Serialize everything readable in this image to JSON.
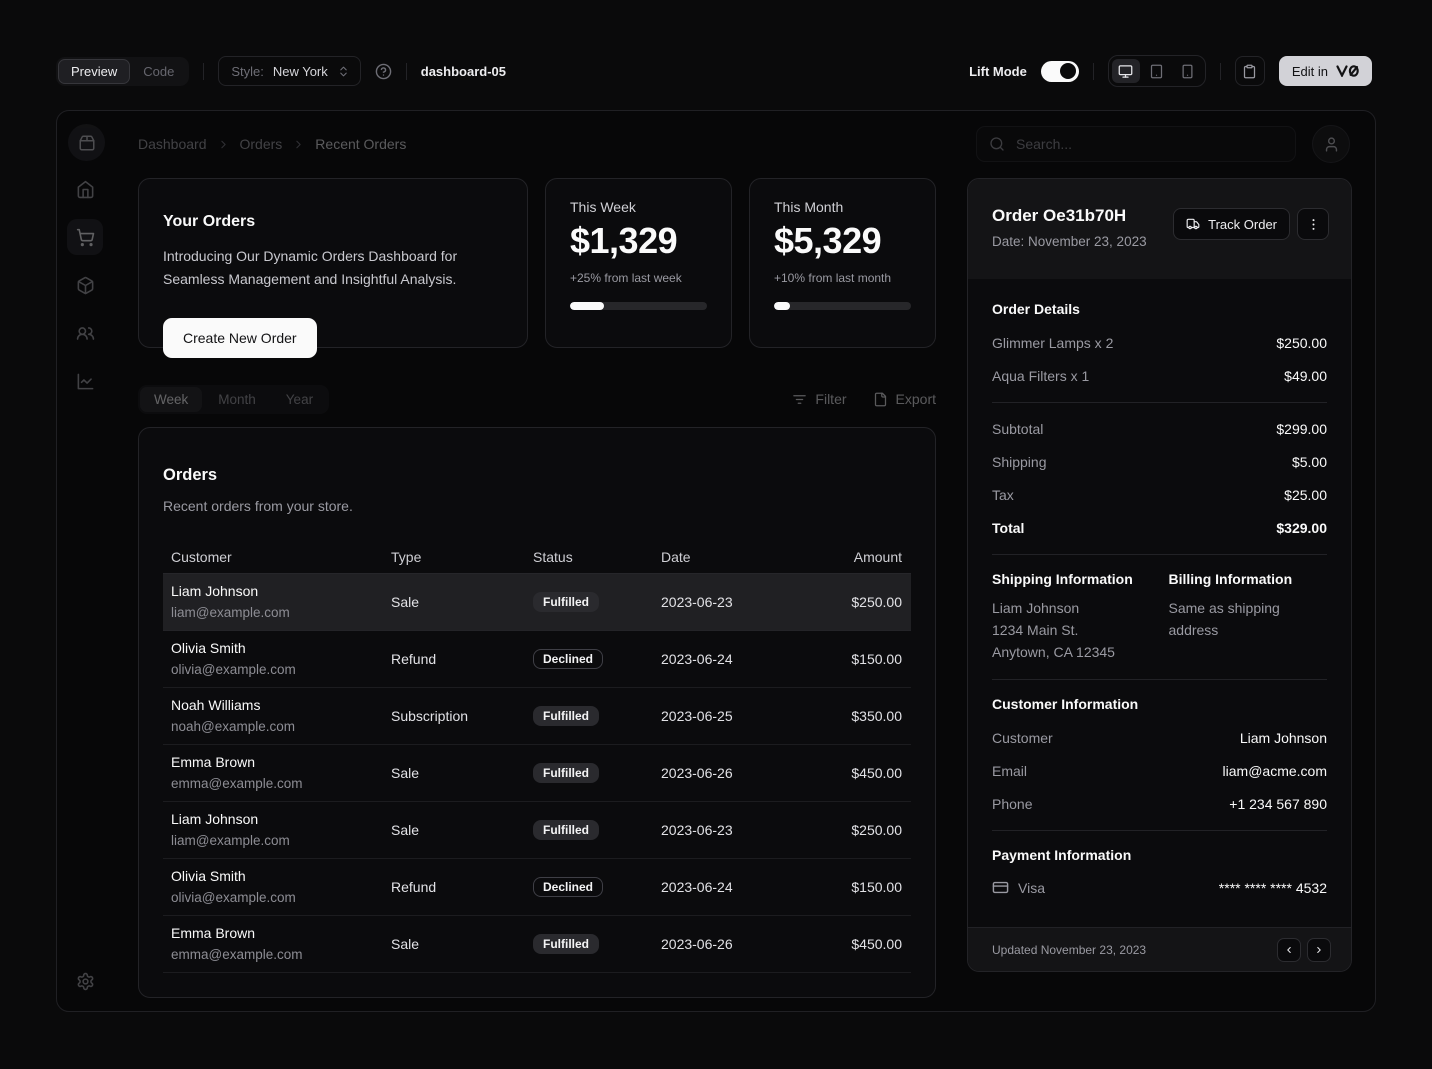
{
  "toolbar": {
    "preview_label": "Preview",
    "code_label": "Code",
    "style_label": "Style:",
    "style_value": "New York",
    "block_name": "dashboard-05",
    "lift_mode_label": "Lift Mode",
    "lift_mode_on": true,
    "edit_label": "Edit in"
  },
  "header": {
    "breadcrumb": [
      "Dashboard",
      "Orders",
      "Recent Orders"
    ],
    "search_placeholder": "Search..."
  },
  "hero": {
    "title": "Your Orders",
    "description": "Introducing Our Dynamic Orders Dashboard for Seamless Management and Insightful Analysis.",
    "cta": "Create New Order"
  },
  "stats": [
    {
      "label": "This Week",
      "value": "$1,329",
      "delta": "+25% from last week",
      "progress": 25
    },
    {
      "label": "This Month",
      "value": "$5,329",
      "delta": "+10% from last month",
      "progress": 12
    }
  ],
  "tabs": {
    "items": [
      "Week",
      "Month",
      "Year"
    ],
    "active": "Week",
    "filter_label": "Filter",
    "export_label": "Export"
  },
  "orders": {
    "title": "Orders",
    "description": "Recent orders from your store.",
    "columns": [
      "Customer",
      "Type",
      "Status",
      "Date",
      "Amount"
    ],
    "rows": [
      {
        "name": "Liam Johnson",
        "email": "liam@example.com",
        "type": "Sale",
        "status": "Fulfilled",
        "badge": "secondary",
        "date": "2023-06-23",
        "amount": "$250.00",
        "selected": true
      },
      {
        "name": "Olivia Smith",
        "email": "olivia@example.com",
        "type": "Refund",
        "status": "Declined",
        "badge": "outline",
        "date": "2023-06-24",
        "amount": "$150.00",
        "selected": false
      },
      {
        "name": "Noah Williams",
        "email": "noah@example.com",
        "type": "Subscription",
        "status": "Fulfilled",
        "badge": "secondary",
        "date": "2023-06-25",
        "amount": "$350.00",
        "selected": false
      },
      {
        "name": "Emma Brown",
        "email": "emma@example.com",
        "type": "Sale",
        "status": "Fulfilled",
        "badge": "secondary",
        "date": "2023-06-26",
        "amount": "$450.00",
        "selected": false
      },
      {
        "name": "Liam Johnson",
        "email": "liam@example.com",
        "type": "Sale",
        "status": "Fulfilled",
        "badge": "secondary",
        "date": "2023-06-23",
        "amount": "$250.00",
        "selected": false
      },
      {
        "name": "Olivia Smith",
        "email": "olivia@example.com",
        "type": "Refund",
        "status": "Declined",
        "badge": "outline",
        "date": "2023-06-24",
        "amount": "$150.00",
        "selected": false
      },
      {
        "name": "Emma Brown",
        "email": "emma@example.com",
        "type": "Sale",
        "status": "Fulfilled",
        "badge": "secondary",
        "date": "2023-06-26",
        "amount": "$450.00",
        "selected": false
      }
    ]
  },
  "order_panel": {
    "title": "Order Oe31b70H",
    "date": "Date: November 23, 2023",
    "track_label": "Track Order",
    "details_title": "Order Details",
    "items": [
      {
        "label": "Glimmer Lamps x 2",
        "value": "$250.00"
      },
      {
        "label": "Aqua Filters x 1",
        "value": "$49.00"
      }
    ],
    "summary": [
      {
        "label": "Subtotal",
        "value": "$299.00"
      },
      {
        "label": "Shipping",
        "value": "$5.00"
      },
      {
        "label": "Tax",
        "value": "$25.00"
      },
      {
        "label": "Total",
        "value": "$329.00"
      }
    ],
    "shipping_title": "Shipping Information",
    "shipping_lines": [
      "Liam Johnson",
      "1234 Main St.",
      "Anytown, CA 12345"
    ],
    "billing_title": "Billing Information",
    "billing_value": "Same as shipping address",
    "customer_title": "Customer Information",
    "customer_rows": [
      {
        "label": "Customer",
        "value": "Liam Johnson"
      },
      {
        "label": "Email",
        "value": "liam@acme.com"
      },
      {
        "label": "Phone",
        "value": "+1 234 567 890"
      }
    ],
    "payment_title": "Payment Information",
    "payment_method": "Visa",
    "payment_value": "**** **** **** 4532",
    "footer_text": "Updated November 23, 2023"
  },
  "icons": {
    "logo": "package-2",
    "nav": [
      "home",
      "shopping-cart",
      "package",
      "users",
      "line-chart",
      "settings"
    ],
    "search": "magnifier",
    "avatar": "user",
    "filter": "list-filter",
    "export": "file",
    "track": "truck",
    "more": "more-vertical",
    "payment": "credit-card",
    "pager": [
      "chevron-left",
      "chevron-right"
    ],
    "devices": [
      "monitor",
      "tablet",
      "smartphone"
    ],
    "toolbar": [
      "help-circle",
      "chevrons-up-down",
      "clipboard",
      "v0-logo"
    ]
  },
  "colors": {
    "background": "#0a0a0b",
    "card": "#0b0b0d",
    "border": "#232327",
    "accent": "#fafafa",
    "muted_text": "#9a9aa2",
    "selected_row": "#202023"
  }
}
